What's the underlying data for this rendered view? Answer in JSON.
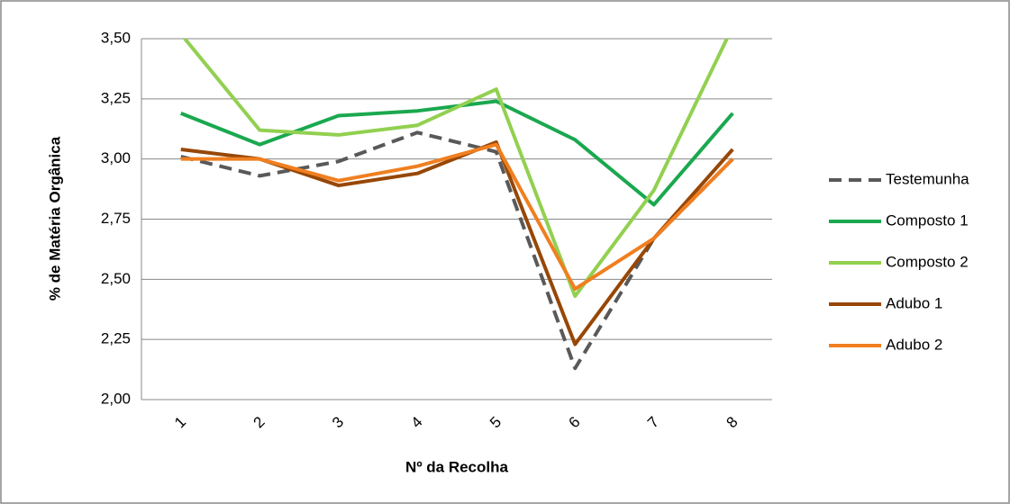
{
  "chart_data": {
    "type": "line",
    "y_label": "% de Matéria Orgânica",
    "x_label": "Nº da Recolha",
    "categories": [
      "1",
      "2",
      "3",
      "4",
      "5",
      "6",
      "7",
      "8"
    ],
    "series": [
      {
        "name": "Testemunha",
        "color": "#595959",
        "dashed": true,
        "values": [
          3.01,
          2.93,
          2.99,
          3.11,
          3.03,
          2.13,
          2.67,
          3.0
        ]
      },
      {
        "name": "Composto 1",
        "color": "#1aa84f",
        "values": [
          3.19,
          3.06,
          3.18,
          3.2,
          3.24,
          3.08,
          2.81,
          3.19
        ]
      },
      {
        "name": "Composto 2",
        "color": "#92d050",
        "values": [
          3.52,
          3.12,
          3.1,
          3.14,
          3.29,
          2.43,
          2.87,
          3.55
        ]
      },
      {
        "name": "Adubo 1",
        "color": "#974706",
        "values": [
          3.04,
          3.0,
          2.89,
          2.94,
          3.07,
          2.23,
          2.67,
          3.04
        ]
      },
      {
        "name": "Adubo 2",
        "color": "#f07f20",
        "values": [
          3.0,
          3.0,
          2.91,
          2.97,
          3.06,
          2.46,
          2.67,
          3.0
        ]
      }
    ],
    "ylim": [
      2,
      3.5
    ],
    "yticks": [
      {
        "value": 2,
        "label": "2,00"
      },
      {
        "value": 2.25,
        "label": "2,25"
      },
      {
        "value": 2.5,
        "label": "2,50"
      },
      {
        "value": 2.75,
        "label": "2,75"
      },
      {
        "value": 3,
        "label": "3,00"
      },
      {
        "value": 3.25,
        "label": "3,25"
      },
      {
        "value": 3.5,
        "label": "3,50"
      }
    ],
    "grid": true,
    "legend": "right"
  }
}
